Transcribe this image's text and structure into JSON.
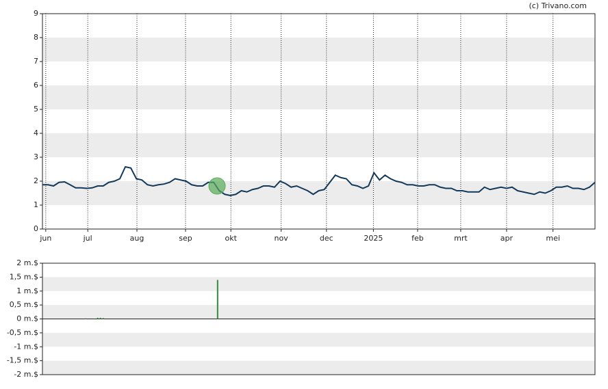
{
  "credit": "(c) Trivano.com",
  "chart_data": [
    {
      "type": "line",
      "x": [
        0,
        1,
        2,
        3,
        4,
        5,
        6,
        7,
        8,
        9,
        10,
        11,
        12,
        13,
        14,
        15,
        16,
        17,
        18,
        19,
        20,
        21,
        22,
        23,
        24,
        25,
        26,
        27,
        28,
        29,
        30,
        31,
        32,
        33,
        34,
        35,
        36,
        37,
        38,
        39,
        40,
        41,
        42,
        43,
        44,
        45,
        46,
        47,
        48,
        49,
        50,
        51,
        52,
        53,
        54,
        55,
        56,
        57,
        58,
        59,
        60,
        61,
        62,
        63,
        64,
        65,
        66,
        67,
        68,
        69,
        70,
        71,
        72,
        73,
        74,
        75,
        76,
        77,
        78,
        79,
        80,
        81,
        82,
        83,
        84,
        85,
        86,
        87,
        88,
        89,
        90,
        91,
        92,
        93,
        94,
        95,
        96,
        97,
        98,
        99,
        100
      ],
      "series": [
        {
          "color": "#12395a",
          "values": [
            1.85,
            1.85,
            1.8,
            1.95,
            1.97,
            1.85,
            1.72,
            1.72,
            1.7,
            1.72,
            1.8,
            1.8,
            1.95,
            2.0,
            2.1,
            2.6,
            2.55,
            2.1,
            2.05,
            1.85,
            1.8,
            1.85,
            1.88,
            1.95,
            2.1,
            2.05,
            2.0,
            1.85,
            1.8,
            1.8,
            1.95,
            1.95,
            1.6,
            1.45,
            1.4,
            1.45,
            1.6,
            1.55,
            1.65,
            1.7,
            1.8,
            1.8,
            1.75,
            2.0,
            1.9,
            1.75,
            1.8,
            1.7,
            1.6,
            1.45,
            1.6,
            1.65,
            1.95,
            2.25,
            2.15,
            2.1,
            1.85,
            1.8,
            1.7,
            1.8,
            2.35,
            2.05,
            2.25,
            2.1,
            2.0,
            1.95,
            1.85,
            1.85,
            1.8,
            1.8,
            1.85,
            1.85,
            1.75,
            1.7,
            1.7,
            1.6,
            1.6,
            1.55,
            1.55,
            1.55,
            1.75,
            1.65,
            1.7,
            1.75,
            1.7,
            1.75,
            1.6,
            1.55,
            1.5,
            1.45,
            1.55,
            1.5,
            1.6,
            1.75,
            1.75,
            1.8,
            1.7,
            1.7,
            1.65,
            1.75,
            1.95
          ]
        }
      ],
      "events": [
        {
          "x": 31.6,
          "y": 1.8,
          "color": "#5aab5a"
        }
      ],
      "xlim": [
        0,
        100
      ],
      "xticks": [
        {
          "value": 0.6,
          "label": "jun"
        },
        {
          "value": 8.2,
          "label": "jul"
        },
        {
          "value": 17.1,
          "label": "aug"
        },
        {
          "value": 25.9,
          "label": "sep"
        },
        {
          "value": 34.1,
          "label": "okt"
        },
        {
          "value": 43.2,
          "label": "nov"
        },
        {
          "value": 51.4,
          "label": "dec"
        },
        {
          "value": 59.9,
          "label": "2025"
        },
        {
          "value": 67.9,
          "label": "feb"
        },
        {
          "value": 75.7,
          "label": "mrt"
        },
        {
          "value": 84.0,
          "label": "apr"
        },
        {
          "value": 92.4,
          "label": "mei"
        }
      ],
      "ylim": [
        0,
        9
      ],
      "yticks": [
        0,
        1,
        2,
        3,
        4,
        5,
        6,
        7,
        8,
        9
      ]
    },
    {
      "type": "bar",
      "x": [
        7.8,
        10.0,
        10.5,
        11.0,
        31.7
      ],
      "values": [
        0.02,
        0.04,
        0.04,
        0.03,
        1.4
      ],
      "color": "#2e8b3e",
      "xlim": [
        0,
        100
      ],
      "ylim": [
        -2,
        2
      ],
      "yticks": [
        {
          "value": -2,
          "label": "-2 m.$"
        },
        {
          "value": -1.5,
          "label": "-1,5 m.$"
        },
        {
          "value": -1,
          "label": "-1 m.$"
        },
        {
          "value": -0.5,
          "label": "-0,5 m.$"
        },
        {
          "value": 0,
          "label": "0 m.$"
        },
        {
          "value": 0.5,
          "label": "0,5 m.$"
        },
        {
          "value": 1,
          "label": "1 m.$"
        },
        {
          "value": 1.5,
          "label": "1,5 m.$"
        },
        {
          "value": 2,
          "label": "2 m.$"
        }
      ]
    }
  ]
}
